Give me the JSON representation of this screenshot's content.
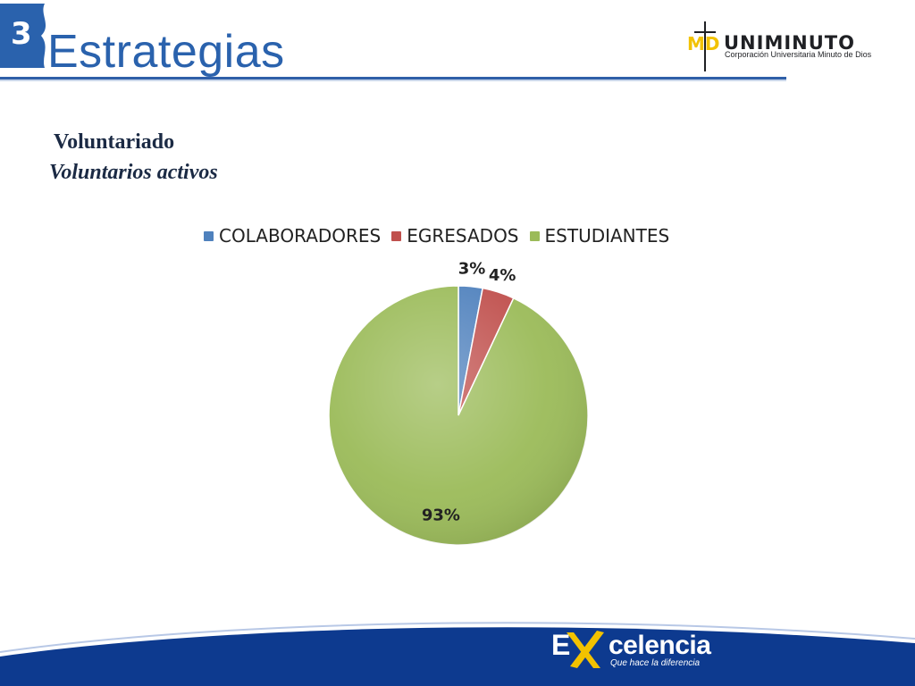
{
  "header": {
    "badge_number": "3",
    "title": "Estrategias"
  },
  "logo": {
    "mark": "MD",
    "name": "UNIMINUTO",
    "subtitle": "Corporación Universitaria Minuto de Dios"
  },
  "section": {
    "heading": "Voluntariado",
    "subheading": "Voluntarios activos"
  },
  "colors": {
    "primary_blue": "#2a62ad",
    "footer_blue": "#0d3a8f",
    "accent_yellow": "#f2c200"
  },
  "footer": {
    "brand_e": "E",
    "brand_word": "celencia",
    "tagline": "Que hace la diferencia"
  },
  "chart_data": {
    "type": "pie",
    "title": "",
    "categories": [
      "COLABORADORES",
      "EGRESADOS",
      "ESTUDIANTES"
    ],
    "values": [
      3,
      4,
      93
    ],
    "value_labels": [
      "3%",
      "4%",
      "93%"
    ],
    "colors": [
      "#4f81bd",
      "#c0504d",
      "#9bbb59"
    ],
    "legend_position": "top"
  }
}
